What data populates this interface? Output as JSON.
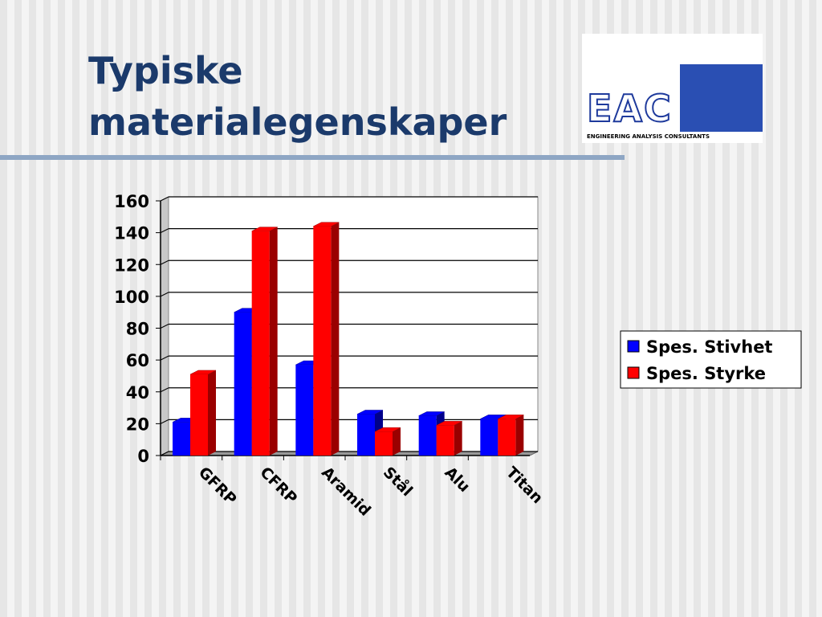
{
  "chart_data": {
    "type": "bar3d",
    "title": "Typiske materialegenskaper",
    "categories": [
      "GFRP",
      "CFRP",
      "Aramid",
      "Stål",
      "Alu",
      "Titan"
    ],
    "series": [
      {
        "name": "Spes. Stivhet",
        "color": "#0000ff",
        "values": [
          21,
          90,
          57,
          26,
          25,
          23
        ]
      },
      {
        "name": "Spes. Styrke",
        "color": "#ff0000",
        "values": [
          51,
          141,
          144,
          15,
          19,
          23
        ]
      }
    ],
    "ylim": [
      0,
      160
    ],
    "yticks": [
      0,
      20,
      40,
      60,
      80,
      100,
      120,
      140,
      160
    ],
    "grid": true,
    "legend": "right"
  },
  "logo": {
    "name": "EAC",
    "subtitle": "ENGINEERING ANALYSIS CONSULTANTS"
  }
}
